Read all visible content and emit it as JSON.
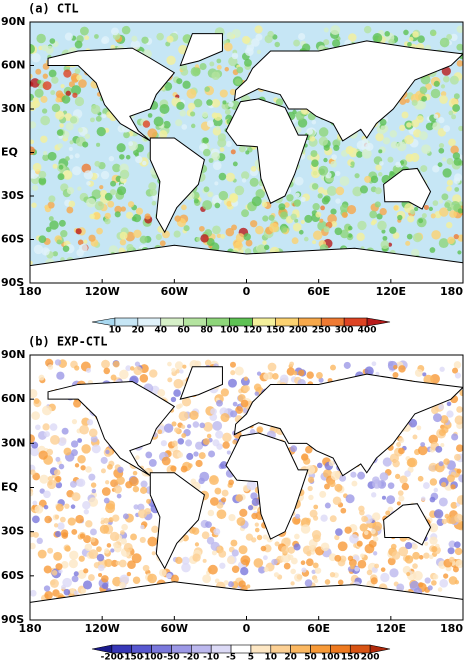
{
  "panels": [
    {
      "title": "(a) CTL",
      "y_labels": [
        "90N",
        "60N",
        "30N",
        "EQ",
        "30S",
        "60S",
        "90S"
      ],
      "x_labels": [
        "180",
        "120W",
        "60W",
        "0",
        "60E",
        "120E",
        "180"
      ],
      "colorbar": {
        "labels": [
          "10",
          "20",
          "40",
          "60",
          "80",
          "100",
          "120",
          "150",
          "200",
          "250",
          "300",
          "400"
        ],
        "colors": [
          "#a8d8f0",
          "#c6e6f5",
          "#e0f2fa",
          "#d6f0c8",
          "#b4e4a0",
          "#8ed67a",
          "#5ec254",
          "#f4f09a",
          "#fcd270",
          "#f7a84a",
          "#ef7a32",
          "#de4423",
          "#b81c1c"
        ]
      }
    },
    {
      "title": "(b) EXP-CTL",
      "y_labels": [
        "90N",
        "60N",
        "30N",
        "EQ",
        "30S",
        "60S",
        "90S"
      ],
      "x_labels": [
        "180",
        "120W",
        "60W",
        "0",
        "60E",
        "120E",
        "180"
      ],
      "colorbar": {
        "labels": [
          "-200",
          "-150",
          "-100",
          "-50",
          "-20",
          "-10",
          "-5",
          "5",
          "10",
          "20",
          "50",
          "100",
          "150",
          "200"
        ],
        "colors": [
          "#1a1a8c",
          "#3838b8",
          "#5858d0",
          "#7a78dc",
          "#9c98e6",
          "#bcb8ee",
          "#dcdaf6",
          "#ffffff",
          "#fde7c4",
          "#fcd094",
          "#fbb862",
          "#f79a38",
          "#ee7a20",
          "#d85414",
          "#b02a0c"
        ]
      }
    }
  ]
}
